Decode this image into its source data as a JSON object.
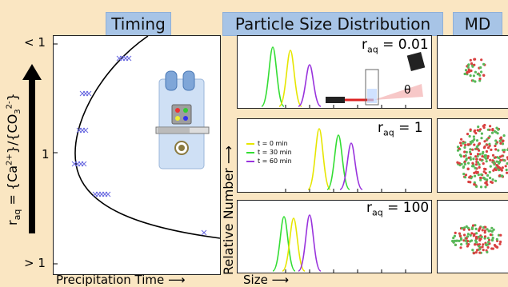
{
  "headers": {
    "timing": "Timing",
    "psd": "Particle Size Distribution",
    "md": "MD"
  },
  "timing": {
    "ylabel": "r",
    "ylabel_sub": "aq",
    "ylabel_rest": " = {Ca",
    "ylabel_sup1": "2+",
    "ylabel_mid": "}/{CO",
    "ylabel_sub2": "3",
    "ylabel_sup2": "2-",
    "ylabel_end": "}",
    "xlabel": "Precipitation Time ⟶",
    "ticks": [
      "< 1",
      "1",
      "> 1"
    ]
  },
  "psd": {
    "ylabel": "Relative Number ⟶",
    "xlabel": "Size ⟶",
    "panels": [
      {
        "r_symbol": "r",
        "r_sub": "aq",
        "r_value": "= 0.01"
      },
      {
        "r_symbol": "r",
        "r_sub": "aq",
        "r_value": "= 1"
      },
      {
        "r_symbol": "r",
        "r_sub": "aq",
        "r_value": "= 100"
      }
    ],
    "theta": "θ",
    "legend": [
      {
        "label": "t = 0 min",
        "color": "#e6e600"
      },
      {
        "label": "t = 30 min",
        "color": "#33dd33"
      },
      {
        "label": "t = 60 min",
        "color": "#9933dd"
      }
    ]
  },
  "colors": {
    "header_bg": "#a7c4e6",
    "page_bg": "#fae6c2",
    "marker": "#6a6ae0",
    "md_red": "#d94040",
    "md_green": "#58b858"
  }
}
